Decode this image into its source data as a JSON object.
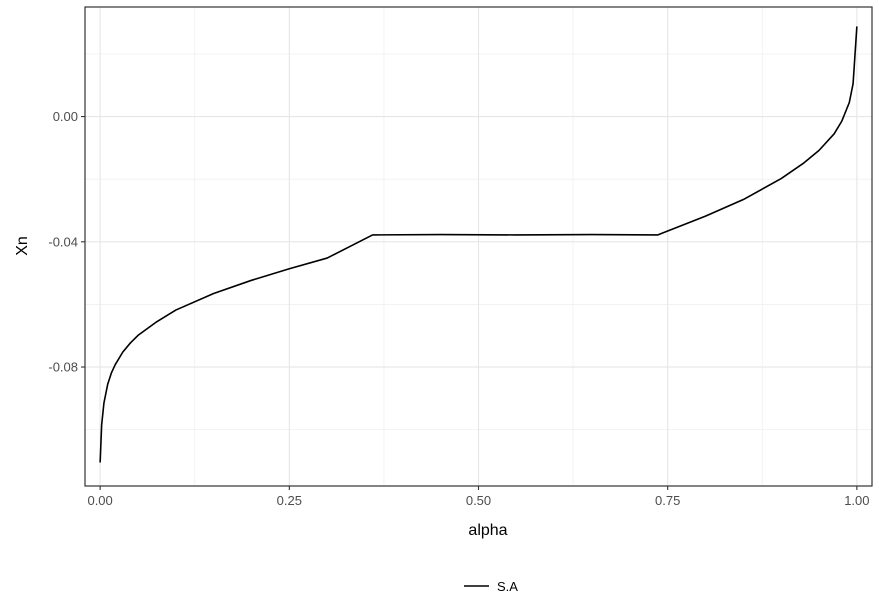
{
  "chart_data": {
    "type": "line",
    "title": "",
    "xlabel": "alpha",
    "ylabel": "Xn",
    "xlim": [
      -0.02,
      1.02
    ],
    "ylim": [
      -0.118,
      0.035
    ],
    "x_ticks": [
      0.0,
      0.25,
      0.5,
      0.75,
      1.0
    ],
    "x_tick_labels": [
      "0.00",
      "0.25",
      "0.50",
      "0.75",
      "1.00"
    ],
    "y_ticks": [
      -0.08,
      -0.04,
      0.0
    ],
    "y_tick_labels": [
      "-0.08",
      "-0.04",
      "0.00"
    ],
    "grid": true,
    "legend_position": "bottom",
    "series": [
      {
        "name": "S.A",
        "color": "#000000",
        "x": [
          0.0,
          0.002,
          0.005,
          0.01,
          0.015,
          0.02,
          0.03,
          0.04,
          0.05,
          0.075,
          0.1,
          0.15,
          0.2,
          0.25,
          0.3,
          0.36,
          0.45,
          0.55,
          0.65,
          0.737,
          0.8,
          0.85,
          0.9,
          0.93,
          0.95,
          0.97,
          0.98,
          0.99,
          0.995,
          1.0
        ],
        "y": [
          -0.1105,
          -0.0985,
          -0.0915,
          -0.0855,
          -0.0818,
          -0.0792,
          -0.0752,
          -0.0723,
          -0.0699,
          -0.0655,
          -0.0618,
          -0.0565,
          -0.0523,
          -0.0486,
          -0.0452,
          -0.0378,
          -0.0377,
          -0.0378,
          -0.0377,
          -0.0378,
          -0.0318,
          -0.0265,
          -0.0198,
          -0.0148,
          -0.0108,
          -0.0055,
          -0.0015,
          0.0045,
          0.0105,
          0.0288
        ]
      }
    ]
  }
}
